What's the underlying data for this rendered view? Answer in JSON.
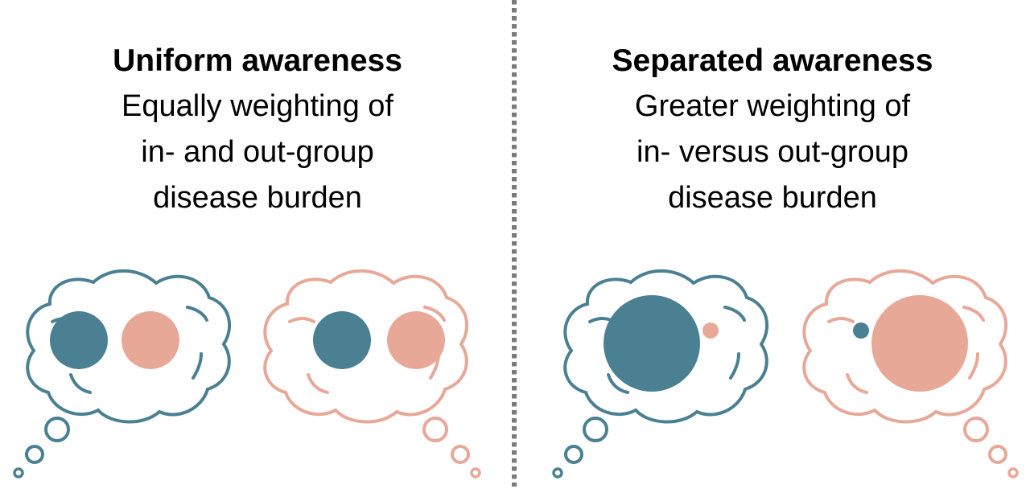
{
  "panels": [
    {
      "title": "Uniform awareness",
      "description": [
        "Equally weighting of",
        "in- and out-group",
        "disease burden"
      ]
    },
    {
      "title": "Separated awareness",
      "description": [
        "Greater weighting of",
        "in- versus out-group",
        "disease burden"
      ]
    }
  ],
  "colors": {
    "in_group": "#4a8092",
    "out_group": "#e8a898",
    "divider": "#7a7a7a"
  }
}
